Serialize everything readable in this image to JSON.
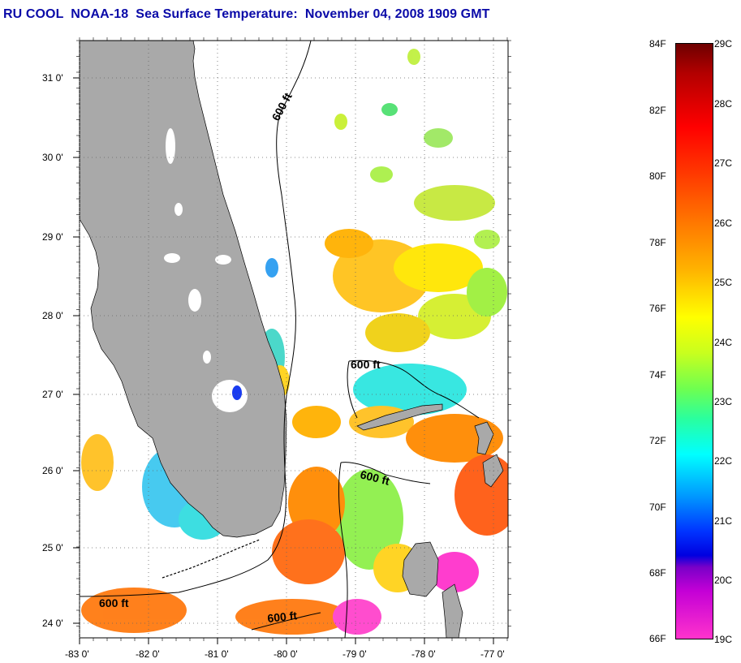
{
  "title": "RU COOL  NOAA-18  Sea Surface Temperature:  November 04, 2008 1909 GMT",
  "lat_labels": [
    "31 0'",
    "30 0'",
    "29 0'",
    "28 0'",
    "27 0'",
    "26 0'",
    "25 0'",
    "24 0'"
  ],
  "lon_labels": [
    "-83 0'",
    "-82 0'",
    "-81 0'",
    "-80 0'",
    "-79 0'",
    "-78 0'",
    "-77 0'"
  ],
  "contour_labels": [
    "600 ft",
    "600 ft",
    "600 ft",
    "600 ft",
    "600 ft"
  ],
  "colorbar": {
    "fahrenheit": [
      "84F",
      "82F",
      "80F",
      "78F",
      "76F",
      "74F",
      "72F",
      "70F",
      "68F",
      "66F"
    ],
    "celsius": [
      "29C",
      "28C",
      "27C",
      "26C",
      "25C",
      "24C",
      "23C",
      "22C",
      "21C",
      "20C",
      "19C"
    ]
  },
  "colors": {
    "title": "#0a0aa8",
    "land": "#a9a9a9"
  }
}
